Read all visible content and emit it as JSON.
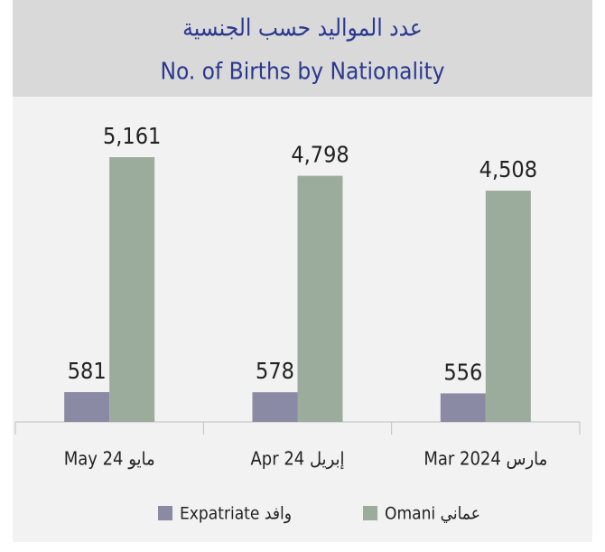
{
  "chart_data": {
    "type": "bar",
    "title": "عدد المواليد حسب الجنسية",
    "subtitle": "No. of Births by Nationality",
    "categories": [
      "May 24 مايو",
      "Apr 24 إبريل",
      "Mar 2024 مارس"
    ],
    "series": [
      {
        "name": "Expatriate وافد",
        "color": "#8a8aa4",
        "values": [
          581,
          578,
          556
        ]
      },
      {
        "name": "Omani عماني",
        "color": "#9bab9c",
        "values": [
          5161,
          4798,
          4508
        ],
        "value_labels": [
          "5,161",
          "4,798",
          "4,508"
        ]
      }
    ],
    "legend": "bottom"
  }
}
